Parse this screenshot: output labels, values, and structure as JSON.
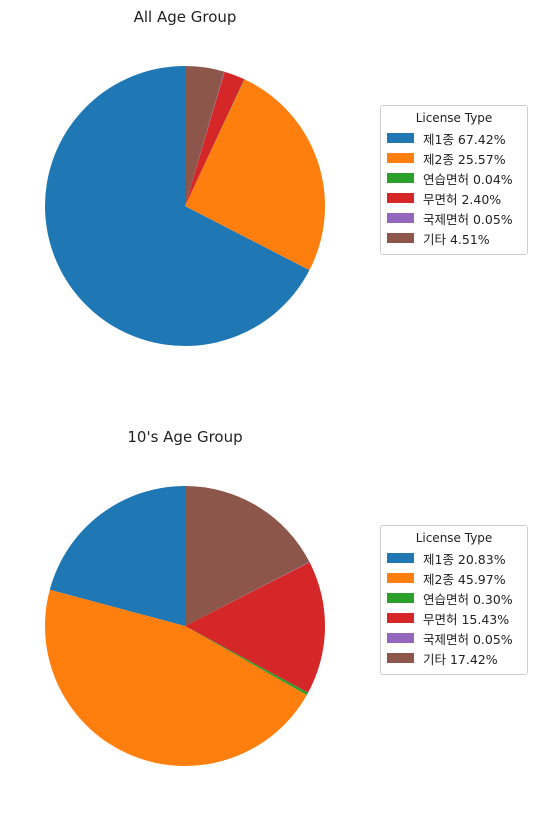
{
  "chart_data": [
    {
      "type": "pie",
      "title": "All Age Group",
      "legend_title": "License Type",
      "legend_position": "right",
      "start_angle_deg": 90,
      "direction": "counterclockwise",
      "categories": [
        "제1종",
        "제2종",
        "연습면허",
        "무면허",
        "국제면허",
        "기타"
      ],
      "values": [
        67.42,
        25.57,
        0.04,
        2.4,
        0.05,
        4.51
      ],
      "labels": [
        "제1종 67.42%",
        "제2종 25.57%",
        "연습면허 0.04%",
        "무면허 2.40%",
        "국제면허 0.05%",
        "기타 4.51%"
      ],
      "colors": [
        "#1f77b4",
        "#ff7f0e",
        "#2ca02c",
        "#d62728",
        "#9467bd",
        "#8c564b"
      ]
    },
    {
      "type": "pie",
      "title": "10's Age Group",
      "legend_title": "License Type",
      "legend_position": "right",
      "start_angle_deg": 90,
      "direction": "counterclockwise",
      "categories": [
        "제1종",
        "제2종",
        "연습면허",
        "무면허",
        "국제면허",
        "기타"
      ],
      "values": [
        20.83,
        45.97,
        0.3,
        15.43,
        0.05,
        17.42
      ],
      "labels": [
        "제1종 20.83%",
        "제2종 45.97%",
        "연습면허 0.30%",
        "무면허 15.43%",
        "국제면허 0.05%",
        "기타 17.42%"
      ],
      "colors": [
        "#1f77b4",
        "#ff7f0e",
        "#2ca02c",
        "#d62728",
        "#9467bd",
        "#8c564b"
      ]
    }
  ]
}
